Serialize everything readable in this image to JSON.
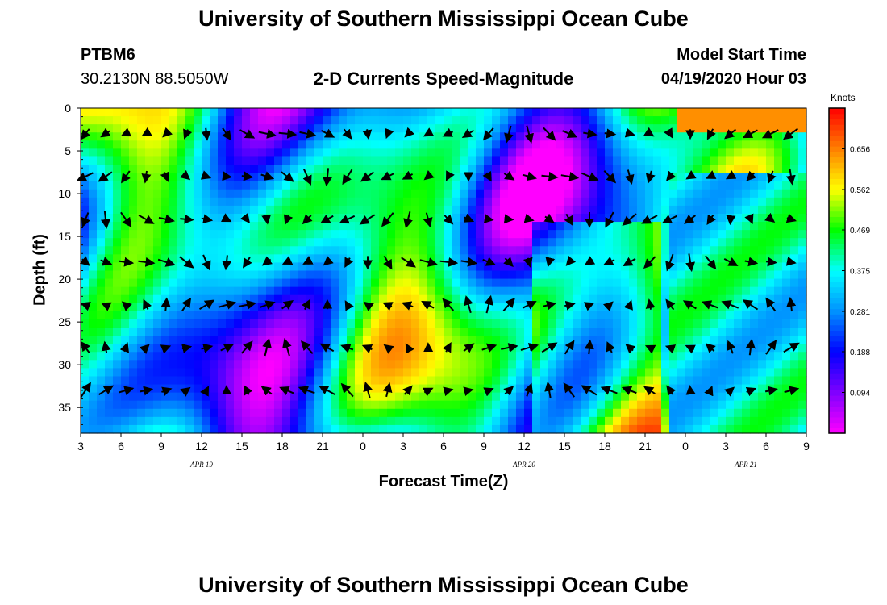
{
  "page_title": "University of Southern Mississippi Ocean Cube",
  "footer_title": "University of Southern Mississippi Ocean Cube",
  "station": {
    "id": "PTBM6",
    "position": "30.2130N 88.5050W"
  },
  "model_start": {
    "label": "Model Start Time",
    "value": "04/19/2020 Hour 03"
  },
  "chart_data": {
    "type": "heatmap",
    "title": "2-D Currents Speed-Magnitude",
    "xlabel": "Forecast Time(Z)",
    "ylabel": "Depth (ft)",
    "x_tick_labels": [
      "3",
      "6",
      "9",
      "12",
      "15",
      "18",
      "21",
      "0",
      "3",
      "6",
      "9",
      "12",
      "15",
      "18",
      "21",
      "0",
      "3",
      "6",
      "9"
    ],
    "date_labels": [
      {
        "text": "APR 19",
        "at_tick": 3
      },
      {
        "text": "APR 20",
        "at_tick": 11
      },
      {
        "text": "APR 21",
        "at_tick": 16.5
      }
    ],
    "y_ticks": [
      0,
      5,
      10,
      15,
      20,
      25,
      30,
      35
    ],
    "ylim": [
      0,
      38
    ],
    "y_inverted": true,
    "colorbar": {
      "title": "Knots",
      "ticks": [
        "0.656",
        "0.562",
        "0.469",
        "0.375",
        "0.281",
        "0.188",
        "0.094"
      ],
      "tick_values": [
        0.656,
        0.562,
        0.469,
        0.375,
        0.281,
        0.188,
        0.094
      ],
      "range": [
        0.0,
        0.75
      ]
    },
    "colors": [
      "#ff00ff",
      "#8000ff",
      "#0000ff",
      "#0090ff",
      "#00ffff",
      "#00ff00",
      "#ffff00",
      "#ff8000",
      "#ff0000"
    ],
    "vector_arrows": true
  }
}
